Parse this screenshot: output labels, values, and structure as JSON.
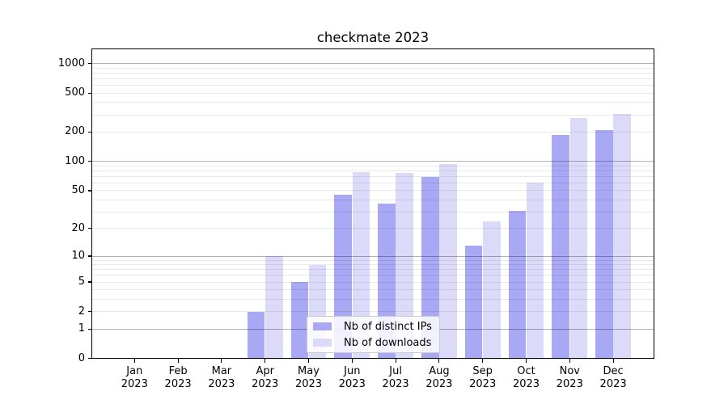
{
  "title": "checkmate 2023",
  "chart_data": {
    "type": "bar",
    "title": "checkmate 2023",
    "months": [
      "Jan",
      "Feb",
      "Mar",
      "Apr",
      "May",
      "Jun",
      "Jul",
      "Aug",
      "Sep",
      "Oct",
      "Nov",
      "Dec"
    ],
    "year_label": "2023",
    "categories": [
      "Jan 2023",
      "Feb 2023",
      "Mar 2023",
      "Apr 2023",
      "May 2023",
      "Jun 2023",
      "Jul 2023",
      "Aug 2023",
      "Sep 2023",
      "Oct 2023",
      "Nov 2023",
      "Dec 2023"
    ],
    "series": [
      {
        "name": "Nb of distinct IPs",
        "color": "#a8a8f5",
        "values": [
          0,
          0,
          0,
          2,
          5,
          45,
          37,
          69,
          13,
          31,
          188,
          211
        ]
      },
      {
        "name": "Nb of downloads",
        "color": "#dbdbf9",
        "values": [
          0,
          0,
          0,
          10,
          8,
          78,
          76,
          95,
          24,
          61,
          276,
          309
        ]
      }
    ],
    "xlabel": "",
    "ylabel": "",
    "y_scale": "log1p",
    "ylim": [
      0,
      1400
    ],
    "y_ticks": [
      0,
      1,
      2,
      5,
      10,
      20,
      50,
      100,
      200,
      500,
      1000
    ],
    "grid": true,
    "grid_major_values": [
      1,
      10,
      100,
      1000
    ],
    "grid_major_color": "rgba(0,0,0,0.30)",
    "grid_minor_color": "rgba(0,0,0,0.085)",
    "axis_color": "#000000",
    "text_color": "#000000",
    "legend_position": "lower center"
  }
}
